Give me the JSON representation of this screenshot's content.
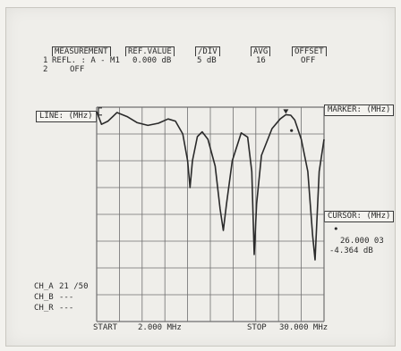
{
  "header": {
    "measurement_label": "MEASUREMENT",
    "ref_value_label": "REF.VALUE",
    "div_label": "/DIV",
    "avg_label": "AVG",
    "offset_label": "OFFSET",
    "ch1_num": "1",
    "ch1_meas": "REFL. : A - M1",
    "ch1_ref": "0.000 dB",
    "ch1_div": "5 dB",
    "ch1_avg": "16",
    "ch1_offset": "OFF",
    "ch2_num": "2",
    "ch2_meas": "OFF"
  },
  "softkeys": {
    "line": "LINE: (MHz)",
    "marker": "MARKER: (MHz)",
    "cursor": "CURSOR: (MHz)"
  },
  "cursor_readout": {
    "frequency": "26.000 03",
    "level": "-4.364 dB"
  },
  "channels": {
    "ch_a_label": "CH_A",
    "ch_a_value": "21 /50",
    "ch_b_label": "CH_B",
    "ch_b_value": "---",
    "ch_r_label": "CH_R",
    "ch_r_value": "---"
  },
  "footer": {
    "start_label": "START",
    "start_value": "2.000 MHz",
    "stop_label": "STOP",
    "stop_value": "30.000 MHz"
  },
  "colors": {
    "trace": "#2a2a2a",
    "grid": "#6f6f6f",
    "background": "#efeeea"
  },
  "chart_data": {
    "type": "line",
    "x_unit": "MHz",
    "x_range": [
      2.0,
      30.0
    ],
    "y_unit": "dB",
    "y_reference": 0.0,
    "y_per_division": 5,
    "grid_divisions": {
      "x": 10,
      "y": 8
    },
    "series": [
      {
        "x": [
          2.0,
          2.6,
          3.4,
          4.5,
          5.8,
          7.0,
          8.3,
          9.6,
          10.8,
          11.7,
          12.6,
          13.2,
          13.5,
          13.8,
          14.4,
          15.0,
          15.7,
          16.6,
          17.2,
          17.6,
          18.0,
          18.7,
          19.8,
          20.6,
          21.1,
          21.4,
          21.7,
          22.3,
          23.6,
          24.6,
          25.3,
          25.9,
          26.4,
          27.2,
          28.0,
          28.6,
          28.9,
          29.1,
          29.4,
          30.0
        ],
        "y": [
          -0.8,
          -3.2,
          -2.6,
          -1.0,
          -1.8,
          -2.9,
          -3.4,
          -3.0,
          -2.2,
          -2.6,
          -5.0,
          -10.0,
          -15.0,
          -10.0,
          -5.5,
          -4.6,
          -6.0,
          -11.0,
          -19.0,
          -23.0,
          -18.0,
          -10.0,
          -4.8,
          -5.6,
          -12.0,
          -27.5,
          -18.0,
          -9.0,
          -4.0,
          -2.2,
          -1.4,
          -1.5,
          -2.4,
          -6.0,
          -12.0,
          -24.0,
          -28.5,
          -22.0,
          -12.0,
          -6.0
        ]
      }
    ],
    "marker": {
      "x": 25.3,
      "y": -1.4
    },
    "cursor": {
      "x": 26.0,
      "y": -4.364
    },
    "grid": true
  }
}
